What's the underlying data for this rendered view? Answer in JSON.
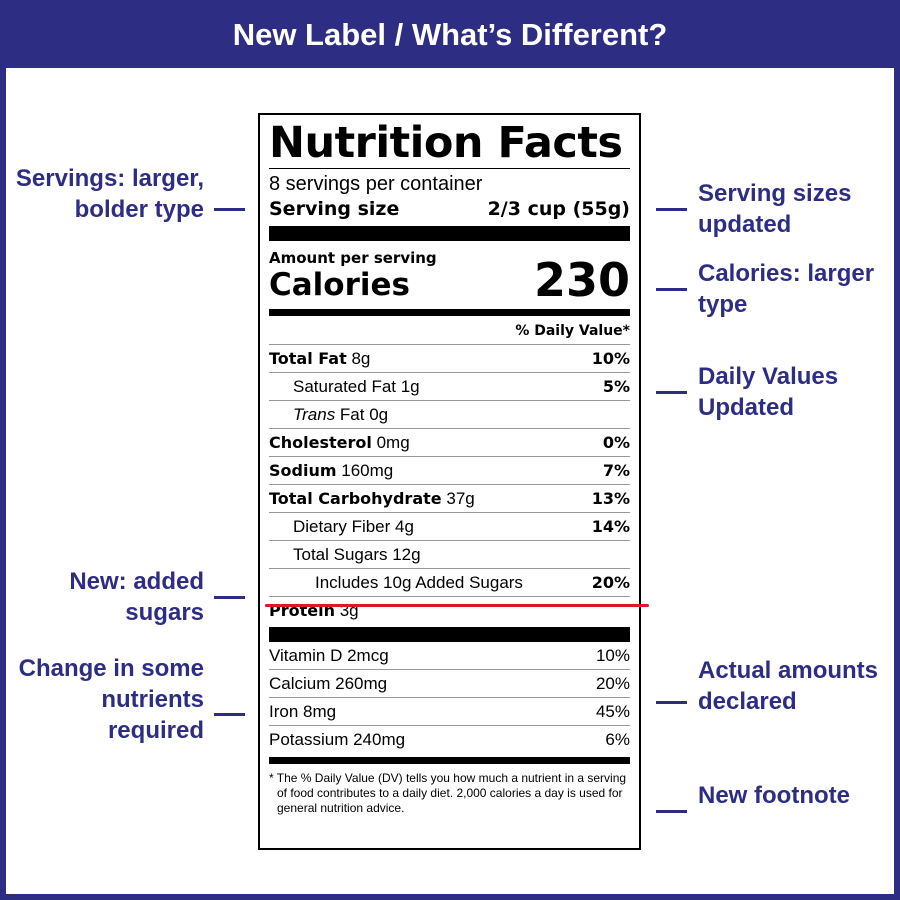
{
  "header": {
    "title": "New Label / What’s Different?"
  },
  "colors": {
    "brand": "#2d2e83",
    "highlight": "#e0142c"
  },
  "label": {
    "title": "Nutrition Facts",
    "servings_per_container": "8 servings per container",
    "serving_size_label": "Serving size",
    "serving_size_value": "2/3 cup (55g)",
    "amount_per_serving": "Amount per serving",
    "calories_label": "Calories",
    "calories_value": "230",
    "daily_value_header": "% Daily Value*",
    "nutrients": [
      {
        "name": "Total Fat",
        "amount": "8g",
        "dv": "10%"
      },
      {
        "name": "Saturated Fat 1g",
        "dv": "5%"
      },
      {
        "name_italic": "Trans",
        "name_rest": " Fat 0g",
        "dv": ""
      },
      {
        "name": "Cholesterol",
        "amount": "0mg",
        "dv": "0%"
      },
      {
        "name": "Sodium",
        "amount": "160mg",
        "dv": "7%"
      },
      {
        "name": "Total Carbohydrate",
        "amount": "37g",
        "dv": "13%"
      },
      {
        "name": "Dietary Fiber 4g",
        "dv": "14%"
      },
      {
        "name": "Total Sugars 12g",
        "dv": ""
      },
      {
        "name": "Includes 10g Added Sugars",
        "dv": "20%"
      },
      {
        "name": "Protein",
        "amount": "3g",
        "dv": ""
      }
    ],
    "vitamins": [
      {
        "name": "Vitamin D 2mcg",
        "dv": "10%"
      },
      {
        "name": "Calcium 260mg",
        "dv": "20%"
      },
      {
        "name": "Iron 8mg",
        "dv": "45%"
      },
      {
        "name": "Potassium 240mg",
        "dv": "6%"
      }
    ],
    "footnote": "* The % Daily Value (DV) tells you how much a nutrient in a serving of food contributes to a daily diet. 2,000 calories a day is used for general nutrition advice."
  },
  "annotations": {
    "left": [
      "Servings: larger, bolder type",
      "New: added sugars",
      "Change in some nutrients required"
    ],
    "right": [
      "Serving sizes updated",
      "Calories: larger type",
      "Daily Values Updated",
      "Actual amounts declared",
      "New footnote"
    ]
  }
}
